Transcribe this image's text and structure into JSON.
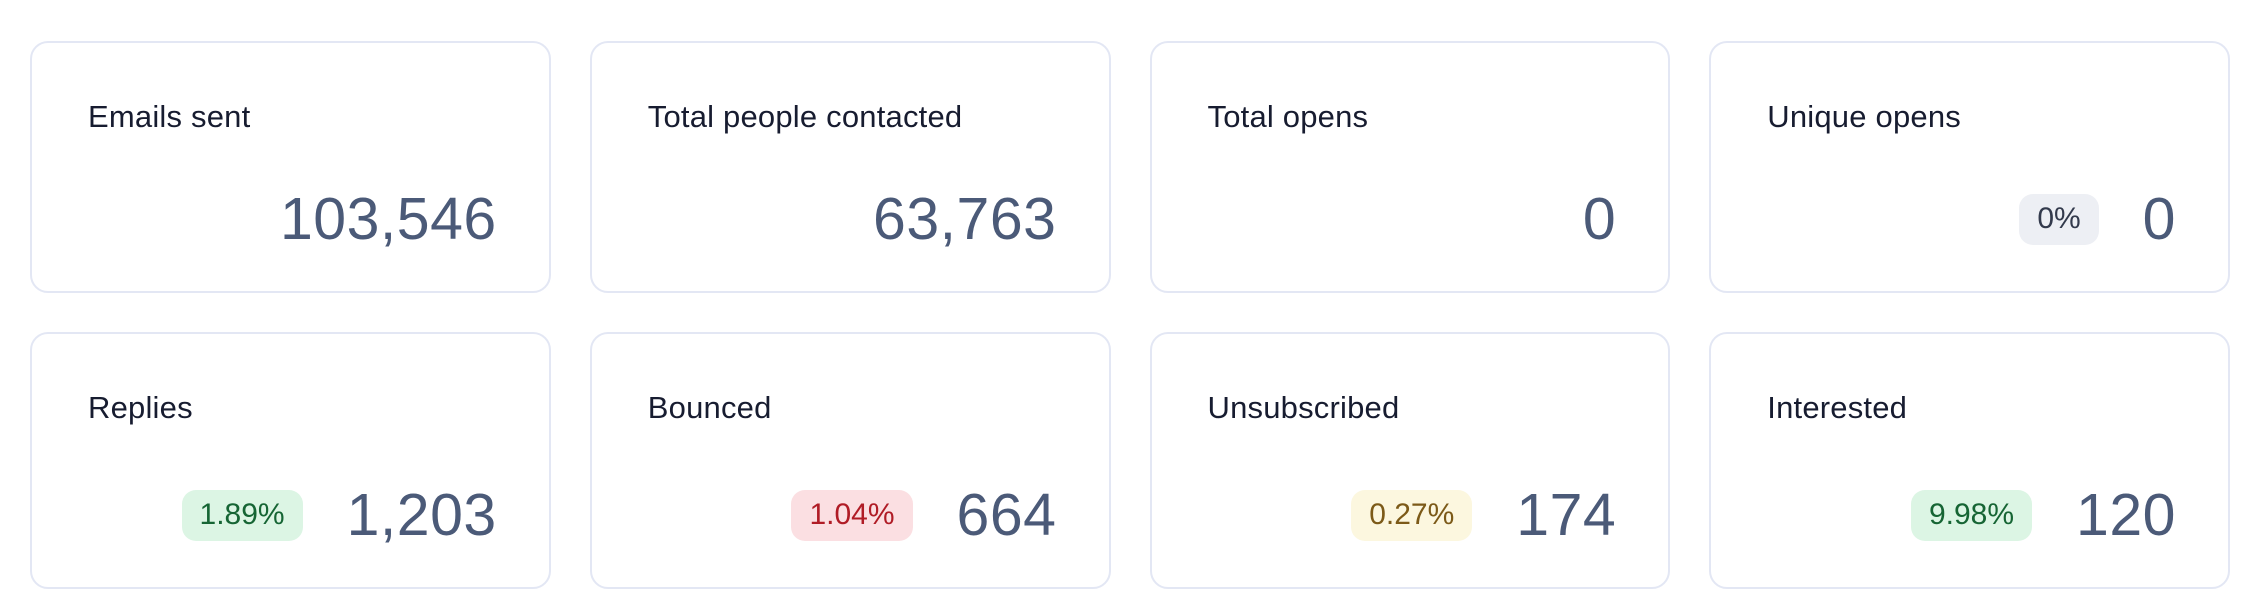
{
  "theme": {
    "page_bg": "#ffffff",
    "card_bg": "#ffffff",
    "card_border": "#e3e7f4",
    "label_color": "#171c30",
    "value_color": "#4b5a78",
    "badge_colors": {
      "gray": {
        "bg": "#edeff4",
        "text": "#333a4c"
      },
      "green": {
        "bg": "#dcf5e4",
        "text": "#166534"
      },
      "red": {
        "bg": "#fbdfe2",
        "text": "#b01c26"
      },
      "yellow": {
        "bg": "#fcf7df",
        "text": "#7c5a18"
      }
    }
  },
  "cards": [
    {
      "label": "Emails sent",
      "value": "103,546"
    },
    {
      "label": "Total people contacted",
      "value": "63,763"
    },
    {
      "label": "Total opens",
      "value": "0"
    },
    {
      "label": "Unique opens",
      "value": "0",
      "badge": {
        "text": "0%",
        "variant": "gray"
      }
    },
    {
      "label": "Replies",
      "value": "1,203",
      "badge": {
        "text": "1.89%",
        "variant": "green"
      }
    },
    {
      "label": "Bounced",
      "value": "664",
      "badge": {
        "text": "1.04%",
        "variant": "red"
      }
    },
    {
      "label": "Unsubscribed",
      "value": "174",
      "badge": {
        "text": "0.27%",
        "variant": "yellow"
      }
    },
    {
      "label": "Interested",
      "value": "120",
      "badge": {
        "text": "9.98%",
        "variant": "green"
      }
    }
  ]
}
